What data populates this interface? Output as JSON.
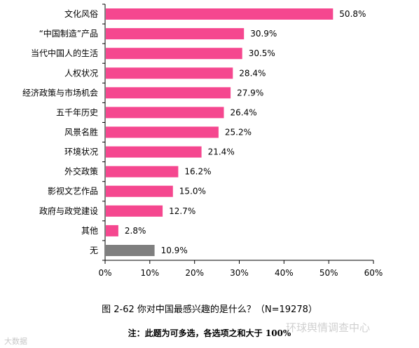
{
  "chart_data": {
    "type": "bar",
    "orientation": "horizontal",
    "categories": [
      "文化风俗",
      "“中国制造”产品",
      "当代中国人的生活",
      "人权状况",
      "经济政策与市场机会",
      "五千年历史",
      "风景名胜",
      "环境状况",
      "外交政策",
      "影视文艺作品",
      "政府与政党建设",
      "其他",
      "无"
    ],
    "values": [
      50.8,
      30.9,
      30.5,
      28.4,
      27.9,
      26.4,
      25.2,
      21.4,
      16.2,
      15.0,
      12.7,
      2.8,
      10.9
    ],
    "value_labels": [
      "50.8%",
      "30.9%",
      "30.5%",
      "28.4%",
      "27.9%",
      "26.4%",
      "25.2%",
      "21.4%",
      "16.2%",
      "15.0%",
      "12.7%",
      "2.8%",
      "10.9%"
    ],
    "xlim": [
      0,
      60
    ],
    "x_ticks": [
      "0%",
      "10%",
      "20%",
      "30%",
      "40%",
      "50%",
      "60%"
    ],
    "colors": {
      "default": "#f5478f",
      "last": "#7f7f7f"
    },
    "grid": false,
    "legend": "none"
  },
  "caption": "图 2-62  你对中国最感兴趣的是什么？（N=19278）",
  "note": "注：此题为可多选，各选项之和大于 100%",
  "watermark_left": "大数据",
  "watermark_right": "环球舆情调查中心"
}
